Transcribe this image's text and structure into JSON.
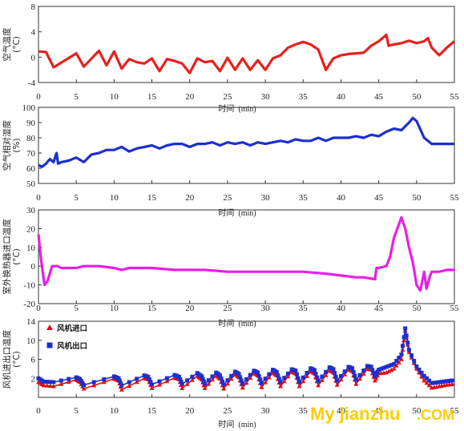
{
  "chart_data": [
    {
      "type": "line",
      "ylabel": "空气温度\n(°C)",
      "xlabel": "时间",
      "xunit": "(min)",
      "xlim": [
        0,
        55
      ],
      "ylim": [
        -4,
        8
      ],
      "xticks": [
        0,
        5,
        10,
        15,
        20,
        25,
        30,
        35,
        40,
        45,
        50,
        55
      ],
      "yticks": [
        -4,
        0,
        4,
        8
      ],
      "color": "#e8201e",
      "series": [
        {
          "x": [
            0,
            1,
            2,
            5,
            6,
            8,
            9,
            10,
            11,
            12,
            13,
            14,
            15,
            16,
            17,
            18,
            19,
            20,
            21,
            22,
            23,
            24,
            25,
            26,
            27,
            28,
            29,
            30,
            31,
            32,
            33,
            34,
            35,
            36,
            37,
            38,
            39,
            40,
            41,
            42,
            43,
            44,
            45,
            46,
            46.3,
            47,
            48,
            49,
            50,
            51,
            51.5,
            52,
            53,
            54,
            55
          ],
          "y": [
            0.9,
            0.8,
            -1.6,
            0.6,
            -1.5,
            1.0,
            -1.3,
            0.9,
            -1.8,
            -0.3,
            -0.8,
            -1.0,
            -0.2,
            -2.2,
            -0.3,
            -0.6,
            -1.0,
            -2.5,
            -0.2,
            -0.8,
            -0.6,
            -2.2,
            -0.1,
            -2.0,
            -0.2,
            -2.0,
            -0.5,
            -2.0,
            -0.2,
            0.3,
            1.5,
            2.0,
            2.4,
            2.0,
            1.2,
            -2.0,
            -0.2,
            0.3,
            0.5,
            0.6,
            0.7,
            1.8,
            2.5,
            3.5,
            1.8,
            2.0,
            2.2,
            2.6,
            2.2,
            2.5,
            3.0,
            1.5,
            0.3,
            1.5,
            2.5
          ]
        }
      ]
    },
    {
      "type": "line",
      "ylabel": "空气相对湿度\n(%)",
      "xlabel": "时间",
      "xunit": "(min)",
      "xlim": [
        0,
        55
      ],
      "ylim": [
        50,
        100
      ],
      "xticks": [
        0,
        5,
        10,
        15,
        20,
        25,
        30,
        35,
        40,
        45,
        50,
        55
      ],
      "yticks": [
        50,
        60,
        70,
        80,
        90,
        100
      ],
      "color": "#1c2fcf",
      "series": [
        {
          "x": [
            0,
            0.5,
            1,
            1.5,
            2,
            2.4,
            2.6,
            3,
            4,
            5,
            6,
            7,
            8,
            9,
            10,
            11,
            12,
            13,
            14,
            15,
            16,
            17,
            18,
            19,
            20,
            21,
            22,
            23,
            24,
            25,
            26,
            27,
            28,
            29,
            30,
            31,
            32,
            33,
            34,
            35,
            36,
            37,
            38,
            39,
            40,
            41,
            42,
            43,
            44,
            45,
            46,
            47,
            48,
            49,
            49.5,
            50,
            51,
            52,
            53,
            54,
            55
          ],
          "y": [
            62,
            61,
            63,
            66,
            64,
            70,
            63,
            64,
            65,
            67,
            64,
            69,
            70,
            72,
            72,
            74,
            71,
            73,
            74,
            75,
            73,
            75,
            76,
            76,
            74,
            76,
            76,
            77,
            75,
            77,
            76,
            77,
            75,
            77,
            76,
            77,
            78,
            77,
            79,
            78,
            78,
            80,
            78,
            80,
            80,
            80,
            81,
            80,
            82,
            81,
            84,
            86,
            85,
            90,
            93,
            91,
            80,
            76,
            76,
            76,
            76
          ]
        }
      ]
    },
    {
      "type": "line",
      "ylabel": "室外换热器进口温度\n(°C)",
      "xlabel": "时间",
      "xunit": "(min)",
      "xlim": [
        0,
        55
      ],
      "ylim": [
        -20,
        30
      ],
      "xticks": [
        0,
        5,
        10,
        15,
        20,
        25,
        30,
        35,
        40,
        45,
        50,
        55
      ],
      "yticks": [
        -20,
        -10,
        0,
        10,
        20,
        30
      ],
      "color": "#e81ee8",
      "series": [
        {
          "x": [
            0,
            0.3,
            0.8,
            1.2,
            1.8,
            2.5,
            3,
            5,
            6,
            8,
            10,
            11,
            12,
            15,
            18,
            20,
            22,
            25,
            28,
            30,
            32,
            35,
            38,
            40,
            42,
            43,
            44.5,
            44.7,
            45,
            46,
            46.5,
            47,
            48,
            48.5,
            49,
            49.5,
            50,
            50.5,
            51,
            51.3,
            51.8,
            52,
            53,
            54,
            55
          ],
          "y": [
            17,
            5,
            -10,
            -8,
            0,
            0,
            -1,
            -1,
            0,
            0,
            -1,
            -2,
            -1,
            -1,
            -2,
            -2,
            -2,
            -3,
            -3,
            -3,
            -3,
            -3,
            -4,
            -5,
            -6,
            -6,
            -7,
            -1,
            -1,
            0,
            5,
            15,
            26,
            20,
            10,
            2,
            -10,
            -13,
            -3,
            -12,
            -5,
            -3,
            -3,
            -2,
            -2
          ]
        }
      ]
    },
    {
      "type": "line",
      "ylabel": "风机进出口温度\n(°C)",
      "xlabel": "时间",
      "xunit": "(min)",
      "xlim": [
        0,
        55
      ],
      "ylim": [
        -2,
        14
      ],
      "xticks": [
        0,
        5,
        10,
        15,
        20,
        25,
        30,
        35,
        40,
        45,
        50,
        55
      ],
      "yticks": [
        -2,
        2,
        6,
        10,
        14
      ],
      "ytick_labels": [
        "",
        "2",
        "6",
        "10",
        "14"
      ],
      "legend": {
        "position": "top-left"
      },
      "series": [
        {
          "name": "风机进口",
          "marker": "triangle",
          "color": "#e01010",
          "x": [
            0,
            0.7,
            2,
            5,
            5.5,
            6,
            10,
            10.6,
            11,
            14,
            14.5,
            15,
            18,
            18.6,
            19,
            21,
            21.6,
            22,
            23.5,
            24,
            24.5,
            26,
            26.5,
            27,
            28.5,
            29,
            29.5,
            31,
            31.5,
            32,
            33.5,
            34,
            34.5,
            36,
            36.5,
            37,
            38.5,
            39,
            39.5,
            41,
            41.5,
            42,
            43.5,
            44,
            44.5,
            45,
            46,
            47,
            48,
            48.5,
            49,
            50,
            51,
            52,
            53,
            54,
            55
          ],
          "y": [
            1.2,
            0.5,
            0.3,
            1.7,
            1.2,
            -0.2,
            1.9,
            1.5,
            -0.4,
            2.0,
            1.8,
            -0.1,
            2.1,
            1.8,
            -0.1,
            2.5,
            1.7,
            -0.1,
            2.6,
            1.9,
            -0.2,
            2.9,
            2.2,
            0.0,
            3.1,
            2.6,
            0.1,
            3.2,
            2.6,
            0.3,
            3.4,
            3.0,
            0.3,
            3.5,
            3.0,
            0.5,
            3.7,
            3.2,
            0.6,
            3.9,
            3.5,
            0.8,
            4.0,
            3.8,
            1.5,
            3.0,
            3.2,
            4.0,
            6.0,
            12.0,
            7.5,
            4.0,
            1.5,
            0.0,
            0.3,
            0.6,
            0.8
          ]
        },
        {
          "name": "风机出口",
          "marker": "square",
          "color": "#1c2fcf",
          "x": [
            0,
            0.7,
            2,
            5,
            5.5,
            6,
            10,
            10.6,
            11,
            14,
            14.5,
            15,
            18,
            18.6,
            19,
            21,
            21.6,
            22,
            23.5,
            24,
            24.5,
            26,
            26.5,
            27,
            28.5,
            29,
            29.5,
            31,
            31.5,
            32,
            33.5,
            34,
            34.5,
            36,
            36.5,
            37,
            38.5,
            39,
            39.5,
            41,
            41.5,
            42,
            43.5,
            44,
            44.5,
            45,
            46,
            47,
            48,
            48.5,
            49,
            50,
            51,
            52,
            53,
            54,
            55
          ],
          "y": [
            2.0,
            1.3,
            1.2,
            2.2,
            1.8,
            0.6,
            2.4,
            2.0,
            0.5,
            2.6,
            2.3,
            0.7,
            2.7,
            2.3,
            0.8,
            3.1,
            2.4,
            0.8,
            3.2,
            2.6,
            0.7,
            3.4,
            2.9,
            0.9,
            3.6,
            3.2,
            1.0,
            3.8,
            3.3,
            1.2,
            3.9,
            3.6,
            1.2,
            4.1,
            3.7,
            1.4,
            4.3,
            3.9,
            1.5,
            4.4,
            4.1,
            1.7,
            4.6,
            4.4,
            2.5,
            3.8,
            4.4,
            5.0,
            7.0,
            12.5,
            8.0,
            4.5,
            2.5,
            1.0,
            1.2,
            1.4,
            1.6
          ]
        }
      ]
    }
  ],
  "watermark": {
    "text": "My jianzhu",
    "suffix": ".COM"
  }
}
